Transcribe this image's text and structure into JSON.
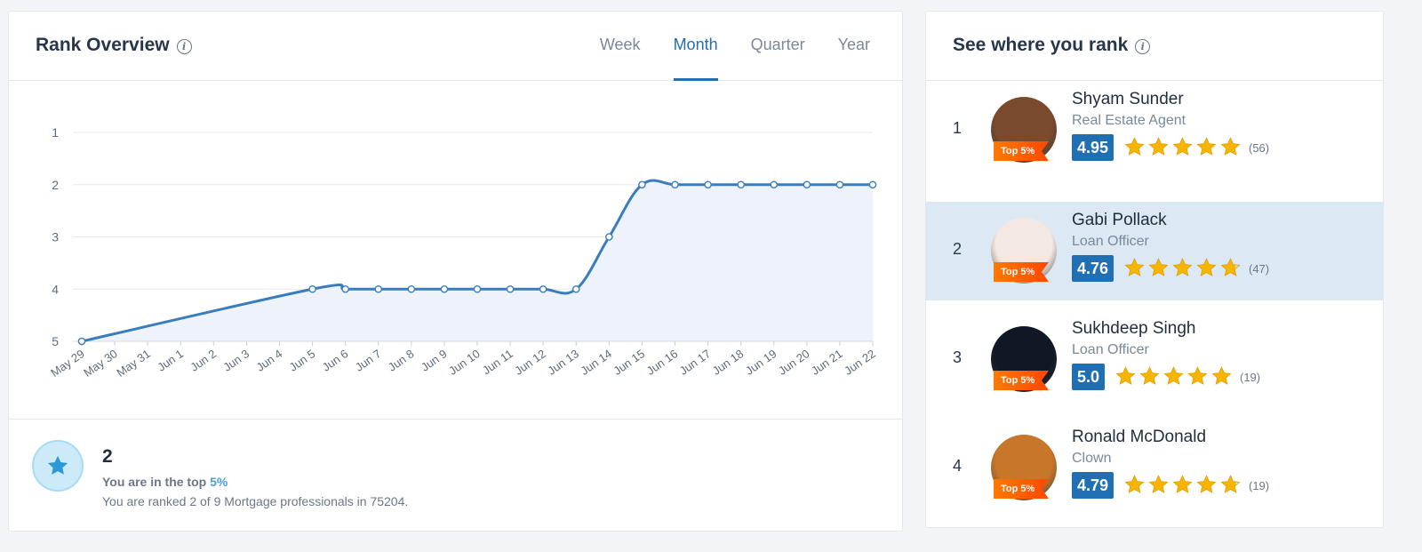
{
  "rank_overview": {
    "title": "Rank Overview",
    "tabs": [
      {
        "label": "Week",
        "active": false
      },
      {
        "label": "Month",
        "active": true
      },
      {
        "label": "Quarter",
        "active": false
      },
      {
        "label": "Year",
        "active": false
      }
    ]
  },
  "chart_data": {
    "type": "area",
    "x": [
      "May 29",
      "May 30",
      "May 31",
      "Jun 1",
      "Jun 2",
      "Jun 3",
      "Jun 4",
      "Jun 5",
      "Jun 6",
      "Jun 7",
      "Jun 8",
      "Jun 9",
      "Jun 10",
      "Jun 11",
      "Jun 12",
      "Jun 13",
      "Jun 14",
      "Jun 15",
      "Jun 16",
      "Jun 17",
      "Jun 18",
      "Jun 19",
      "Jun 20",
      "Jun 21",
      "Jun 22"
    ],
    "points": [
      {
        "x": "May 29",
        "y": 5
      },
      {
        "x": "Jun 5",
        "y": 4
      },
      {
        "x": "Jun 6",
        "y": 4
      },
      {
        "x": "Jun 7",
        "y": 4
      },
      {
        "x": "Jun 8",
        "y": 4
      },
      {
        "x": "Jun 9",
        "y": 4
      },
      {
        "x": "Jun 10",
        "y": 4
      },
      {
        "x": "Jun 11",
        "y": 4
      },
      {
        "x": "Jun 12",
        "y": 4
      },
      {
        "x": "Jun 13",
        "y": 4
      },
      {
        "x": "Jun 14",
        "y": 3
      },
      {
        "x": "Jun 15",
        "y": 2
      },
      {
        "x": "Jun 16",
        "y": 2
      },
      {
        "x": "Jun 17",
        "y": 2
      },
      {
        "x": "Jun 18",
        "y": 2
      },
      {
        "x": "Jun 19",
        "y": 2
      },
      {
        "x": "Jun 20",
        "y": 2
      },
      {
        "x": "Jun 21",
        "y": 2
      },
      {
        "x": "Jun 22",
        "y": 2
      }
    ],
    "y_ticks": [
      1,
      2,
      3,
      4,
      5
    ],
    "ylim": [
      1,
      5
    ],
    "y_inverted": true,
    "grid": true,
    "line_color": "#3a7dbd",
    "fill_color": "#eef3fb"
  },
  "summary": {
    "rank": "2",
    "line1_prefix": "You are in the top ",
    "line1_pct": "5%",
    "line2": "You are ranked 2 of 9 Mortgage professionals in 75204."
  },
  "leaderboard": {
    "title": "See where you rank",
    "rows": [
      {
        "rank": "1",
        "name": "Shyam Sunder",
        "title": "Real Estate Agent",
        "badge": "Top 5%",
        "score": "4.95",
        "stars": 5,
        "reviews": "(56)",
        "highlight": false,
        "avatar_color": "#7a4a2c"
      },
      {
        "rank": "2",
        "name": "Gabi Pollack",
        "title": "Loan Officer",
        "badge": "Top 5%",
        "score": "4.76",
        "stars": 4.76,
        "reviews": "(47)",
        "highlight": true,
        "avatar_color": "#f4e8e3"
      },
      {
        "rank": "3",
        "name": "Sukhdeep Singh",
        "title": "Loan Officer",
        "badge": "Top 5%",
        "score": "5.0",
        "stars": 5,
        "reviews": "(19)",
        "highlight": false,
        "avatar_color": "#0f1824"
      },
      {
        "rank": "4",
        "name": "Ronald McDonald",
        "title": "Clown",
        "badge": "Top 5%",
        "score": "4.79",
        "stars": 4.79,
        "reviews": "(19)",
        "highlight": false,
        "avatar_color": "#c8762a"
      }
    ]
  }
}
